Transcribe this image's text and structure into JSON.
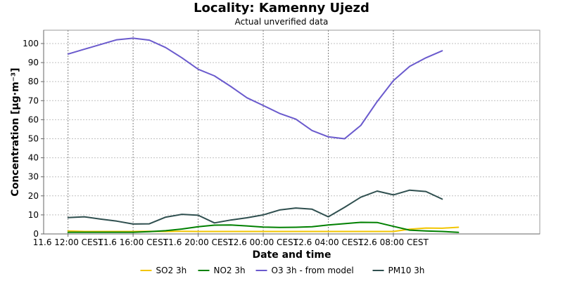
{
  "chart_data": {
    "type": "line",
    "title": "Locality: Kamenny Ujezd",
    "subtitle": "Actual unverified data",
    "xlabel": "Date and time",
    "ylabel": "Concentration [µg·m⁻³]",
    "ylim": [
      0,
      107
    ],
    "yticks": [
      0,
      10,
      20,
      30,
      40,
      50,
      60,
      70,
      80,
      90,
      100
    ],
    "xlim": [
      -1.5,
      29
    ],
    "xticks": [
      {
        "x": 0,
        "label": "11.6 12:00 CEST"
      },
      {
        "x": 4,
        "label": "11.6 16:00 CEST"
      },
      {
        "x": 8,
        "label": "11.6 20:00 CEST"
      },
      {
        "x": 12,
        "label": "12.6 00:00 CEST"
      },
      {
        "x": 16,
        "label": "12.6 04:00 CEST"
      },
      {
        "x": 20,
        "label": "12.6 08:00 CEST"
      }
    ],
    "grid": true,
    "legend_position": "bottom",
    "x": [
      0,
      1,
      2,
      3,
      4,
      5,
      6,
      7,
      8,
      9,
      10,
      11,
      12,
      13,
      14,
      15,
      16,
      17,
      18,
      19,
      20,
      21,
      22,
      23,
      24
    ],
    "series": [
      {
        "name": "SO2 3h",
        "color": "#f2c500",
        "values": [
          1.6,
          1.3,
          1.3,
          1.3,
          1.3,
          1.4,
          1.3,
          1.4,
          1.3,
          1.3,
          1.3,
          1.3,
          1.3,
          1.3,
          1.3,
          1.3,
          1.3,
          1.3,
          1.3,
          1.3,
          1.3,
          2.5,
          3.1,
          3.0,
          3.5
        ]
      },
      {
        "name": "NO2 3h",
        "color": "#008000",
        "values": [
          0.9,
          0.9,
          0.9,
          0.9,
          0.9,
          1.2,
          1.7,
          2.6,
          3.8,
          4.6,
          4.7,
          4.2,
          3.6,
          3.4,
          3.5,
          3.8,
          4.7,
          5.4,
          6.1,
          6.0,
          4.0,
          2.0,
          1.6,
          1.3,
          0.8
        ]
      },
      {
        "name": "O3 3h - from model",
        "color": "#6a5acd",
        "values": [
          94.5,
          97.0,
          99.5,
          102.0,
          102.8,
          101.8,
          97.9,
          92.5,
          86.5,
          83.0,
          77.5,
          71.5,
          67.5,
          63.3,
          60.3,
          54.3,
          51.0,
          50.0,
          57.0,
          69.5,
          80.5,
          88.0,
          92.5,
          96.2,
          null
        ]
      },
      {
        "name": "PM10 3h",
        "color": "#2f4f4f",
        "values": [
          8.6,
          9.0,
          7.8,
          6.7,
          5.2,
          5.3,
          8.8,
          10.3,
          9.8,
          5.8,
          7.3,
          8.5,
          10.0,
          12.6,
          13.6,
          13.0,
          9.0,
          14.0,
          19.3,
          22.5,
          20.5,
          23.0,
          22.3,
          18.3,
          null
        ]
      }
    ]
  }
}
